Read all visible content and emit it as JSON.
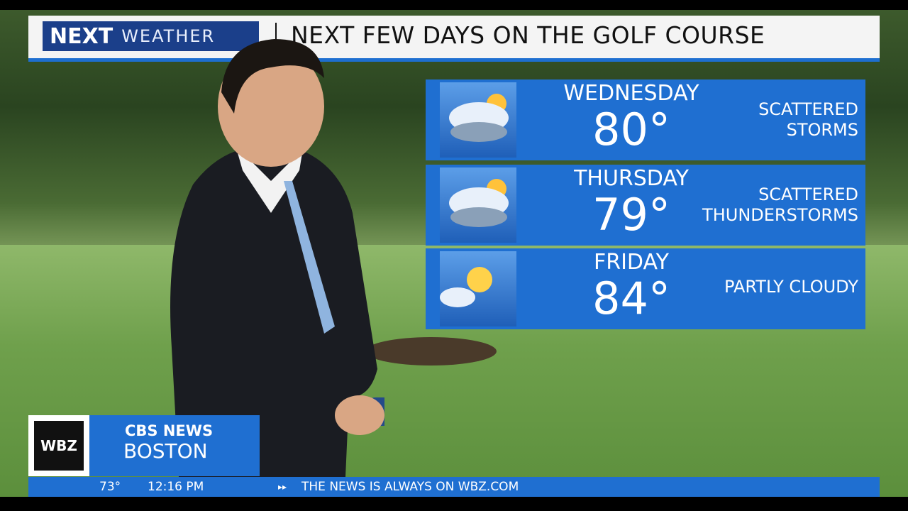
{
  "header": {
    "logo_next": "NEXT",
    "logo_weather": "WEATHER",
    "title": "NEXT FEW DAYS ON THE GOLF COURSE"
  },
  "forecast": [
    {
      "day": "WEDNESDAY",
      "temp": "80°",
      "condition": [
        "SCATTERED",
        "STORMS"
      ]
    },
    {
      "day": "THURSDAY",
      "temp": "79°",
      "condition": [
        "SCATTERED",
        "THUNDERSTORMS"
      ]
    },
    {
      "day": "FRIDAY",
      "temp": "84°",
      "condition": [
        "PARTLY CLOUDY"
      ]
    }
  ],
  "station": {
    "call": "WBZ",
    "network": "CBS NEWS",
    "city": "BOSTON"
  },
  "ticker": {
    "temperature": "73°",
    "time": "12:16 PM",
    "message": "THE NEWS IS ALWAYS ON WBZ.COM"
  }
}
